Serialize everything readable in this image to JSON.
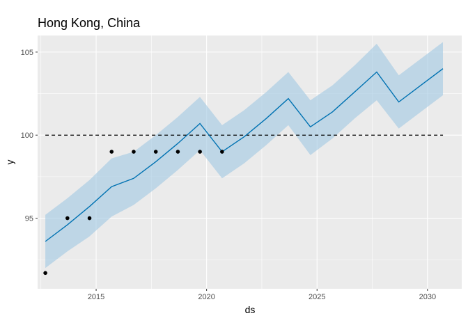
{
  "chart_data": {
    "type": "line",
    "title": "Hong Kong, China",
    "xlabel": "ds",
    "ylabel": "y",
    "xlim": [
      2012.35,
      2031.55
    ],
    "ylim": [
      90.75,
      106.0
    ],
    "x_ticks": [
      2015,
      2020,
      2025,
      2030
    ],
    "x_tick_labels": [
      "2015",
      "2020",
      "2025",
      "2030"
    ],
    "y_ticks": [
      95,
      100,
      105
    ],
    "y_tick_labels": [
      "95",
      "100",
      "105"
    ],
    "grid": true,
    "colors": {
      "panel": "#ebebeb",
      "grid_major": "#ffffff",
      "forecast_line": "#0072b2",
      "interval_fill": "#a6cbe3",
      "points": "#000000",
      "reference_line": "#000000"
    },
    "observed_points": {
      "x": [
        2012.7,
        2013.7,
        2014.7,
        2015.7,
        2016.7,
        2017.7,
        2018.7,
        2019.7,
        2020.7
      ],
      "y": [
        91.7,
        95.0,
        95.0,
        99.0,
        99.0,
        99.0,
        99.0,
        99.0,
        99.0
      ]
    },
    "forecast": {
      "x": [
        2012.7,
        2013.7,
        2014.7,
        2015.7,
        2016.7,
        2017.7,
        2018.7,
        2019.7,
        2020.7,
        2021.7,
        2022.7,
        2023.7,
        2024.7,
        2025.7,
        2026.7,
        2027.7,
        2028.7,
        2029.7,
        2030.7
      ],
      "yhat": [
        93.6,
        94.6,
        95.7,
        96.9,
        97.4,
        98.4,
        99.5,
        100.7,
        99.0,
        99.9,
        101.0,
        102.2,
        100.5,
        101.4,
        102.6,
        103.8,
        102.0,
        103.0,
        104.0
      ],
      "yhat_lower": [
        92.0,
        93.0,
        93.9,
        95.1,
        95.8,
        96.8,
        97.9,
        99.1,
        97.4,
        98.3,
        99.4,
        100.6,
        98.8,
        99.8,
        101.0,
        102.1,
        100.4,
        101.4,
        102.4
      ],
      "yhat_upper": [
        95.2,
        96.2,
        97.3,
        98.6,
        99.0,
        100.0,
        101.1,
        102.3,
        100.6,
        101.5,
        102.6,
        103.8,
        102.1,
        103.0,
        104.2,
        105.5,
        103.6,
        104.6,
        105.6
      ]
    },
    "reference_line": {
      "y": 100,
      "x_start": 2012.7,
      "x_end": 2030.7,
      "style": "dashed"
    }
  }
}
